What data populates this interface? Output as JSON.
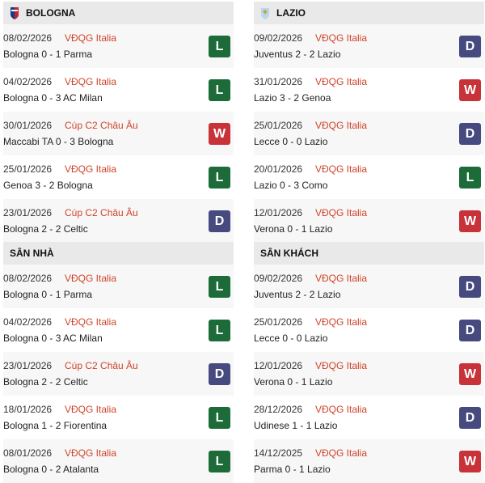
{
  "colors": {
    "L": "#1e6b3a",
    "W": "#c8333a",
    "D": "#474a7e"
  },
  "bologna": {
    "title": "BOLOGNA",
    "matches": [
      {
        "date": "08/02/2026",
        "comp": "VĐQG Italia",
        "match": "Bologna 0 - 1 Parma",
        "result": "L"
      },
      {
        "date": "04/02/2026",
        "comp": "VĐQG Italia",
        "match": "Bologna 0 - 3 AC Milan",
        "result": "L"
      },
      {
        "date": "30/01/2026",
        "comp": "Cúp C2 Châu Âu",
        "match": "Maccabi TA 0 - 3 Bologna",
        "result": "W"
      },
      {
        "date": "25/01/2026",
        "comp": "VĐQG Italia",
        "match": "Genoa 3 - 2 Bologna",
        "result": "L"
      },
      {
        "date": "23/01/2026",
        "comp": "Cúp C2 Châu Âu",
        "match": "Bologna 2 - 2 Celtic",
        "result": "D"
      }
    ]
  },
  "lazio": {
    "title": "LAZIO",
    "matches": [
      {
        "date": "09/02/2026",
        "comp": "VĐQG Italia",
        "match": "Juventus 2 - 2 Lazio",
        "result": "D"
      },
      {
        "date": "31/01/2026",
        "comp": "VĐQG Italia",
        "match": "Lazio 3 - 2 Genoa",
        "result": "W"
      },
      {
        "date": "25/01/2026",
        "comp": "VĐQG Italia",
        "match": "Lecce 0 - 0 Lazio",
        "result": "D"
      },
      {
        "date": "20/01/2026",
        "comp": "VĐQG Italia",
        "match": "Lazio 0 - 3 Como",
        "result": "L"
      },
      {
        "date": "12/01/2026",
        "comp": "VĐQG Italia",
        "match": "Verona 0 - 1 Lazio",
        "result": "W"
      }
    ]
  },
  "home": {
    "title": "SÂN NHÀ",
    "matches": [
      {
        "date": "08/02/2026",
        "comp": "VĐQG Italia",
        "match": "Bologna 0 - 1 Parma",
        "result": "L"
      },
      {
        "date": "04/02/2026",
        "comp": "VĐQG Italia",
        "match": "Bologna 0 - 3 AC Milan",
        "result": "L"
      },
      {
        "date": "23/01/2026",
        "comp": "Cúp C2 Châu Âu",
        "match": "Bologna 2 - 2 Celtic",
        "result": "D"
      },
      {
        "date": "18/01/2026",
        "comp": "VĐQG Italia",
        "match": "Bologna 1 - 2 Fiorentina",
        "result": "L"
      },
      {
        "date": "08/01/2026",
        "comp": "VĐQG Italia",
        "match": "Bologna 0 - 2 Atalanta",
        "result": "L"
      }
    ]
  },
  "away": {
    "title": "SÂN KHÁCH",
    "matches": [
      {
        "date": "09/02/2026",
        "comp": "VĐQG Italia",
        "match": "Juventus 2 - 2 Lazio",
        "result": "D"
      },
      {
        "date": "25/01/2026",
        "comp": "VĐQG Italia",
        "match": "Lecce 0 - 0 Lazio",
        "result": "D"
      },
      {
        "date": "12/01/2026",
        "comp": "VĐQG Italia",
        "match": "Verona 0 - 1 Lazio",
        "result": "W"
      },
      {
        "date": "28/12/2026",
        "comp": "VĐQG Italia",
        "match": "Udinese 1 - 1 Lazio",
        "result": "D"
      },
      {
        "date": "14/12/2025",
        "comp": "VĐQG Italia",
        "match": "Parma 0 - 1 Lazio",
        "result": "W"
      }
    ]
  }
}
